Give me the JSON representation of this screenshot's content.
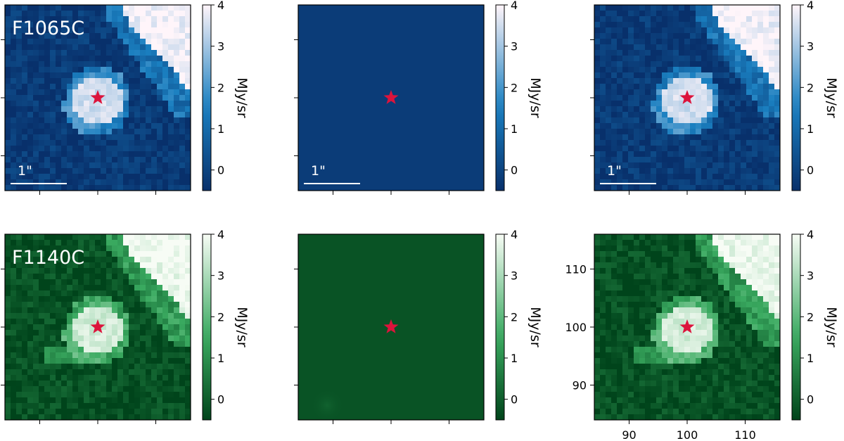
{
  "figure": {
    "colorbar_label": "MJy/sr",
    "scalebar_label": "1\""
  },
  "chart_data": [
    {
      "type": "heatmap",
      "row": 0,
      "col": 0,
      "filter_label": "F1065C",
      "colormap": "blue",
      "colors": {
        "low": "#08306b",
        "mid": "#1a7fc0",
        "high": "#fff5fa"
      },
      "clim": [
        -0.5,
        4
      ],
      "colorbar_ticks": [
        0,
        1,
        2,
        3,
        4
      ],
      "content": "source_and_extended",
      "source_marker": {
        "symbol": "star",
        "color": "#dc143c",
        "x": 100,
        "y": 100
      },
      "scalebar": true,
      "xlim": [
        84,
        116
      ],
      "ylim": [
        84,
        116
      ],
      "xticks": [
        90,
        100,
        110
      ],
      "yticks": [
        90,
        100,
        110
      ],
      "show_tick_labels": false
    },
    {
      "type": "heatmap",
      "row": 0,
      "col": 1,
      "filter_label": "",
      "colormap": "blue",
      "colors": {
        "low": "#08306b",
        "mid": "#1a7fc0",
        "high": "#fff5fa"
      },
      "clim": [
        -0.5,
        4
      ],
      "colorbar_ticks": [
        0,
        1,
        2,
        3,
        4
      ],
      "content": "flat_model",
      "flat_value": -0.2,
      "source_marker": {
        "symbol": "star",
        "color": "#dc143c",
        "x": 100,
        "y": 100
      },
      "scalebar": true,
      "xlim": [
        84,
        116
      ],
      "ylim": [
        84,
        116
      ],
      "xticks": [
        90,
        100,
        110
      ],
      "yticks": [
        90,
        100,
        110
      ],
      "show_tick_labels": false
    },
    {
      "type": "heatmap",
      "row": 0,
      "col": 2,
      "filter_label": "",
      "colormap": "blue",
      "colors": {
        "low": "#08306b",
        "mid": "#1a7fc0",
        "high": "#fff5fa"
      },
      "clim": [
        -0.5,
        4
      ],
      "colorbar_ticks": [
        0,
        1,
        2,
        3,
        4
      ],
      "content": "source_and_extended",
      "source_marker": {
        "symbol": "star",
        "color": "#dc143c",
        "x": 100,
        "y": 100
      },
      "scalebar": true,
      "xlim": [
        84,
        116
      ],
      "ylim": [
        84,
        116
      ],
      "xticks": [
        90,
        100,
        110
      ],
      "yticks": [
        90,
        100,
        110
      ],
      "show_tick_labels": false
    },
    {
      "type": "heatmap",
      "row": 1,
      "col": 0,
      "filter_label": "F1140C",
      "colormap": "green",
      "colors": {
        "low": "#00441b",
        "mid": "#3aaa60",
        "high": "#f7fcf5"
      },
      "clim": [
        -0.5,
        4
      ],
      "colorbar_ticks": [
        0,
        1,
        2,
        3,
        4
      ],
      "content": "source_and_extended",
      "source_marker": {
        "symbol": "star",
        "color": "#dc143c",
        "x": 100,
        "y": 100
      },
      "scalebar": false,
      "xlim": [
        84,
        116
      ],
      "ylim": [
        84,
        116
      ],
      "xticks": [
        90,
        100,
        110
      ],
      "yticks": [
        90,
        100,
        110
      ],
      "show_tick_labels": false
    },
    {
      "type": "heatmap",
      "row": 1,
      "col": 1,
      "filter_label": "",
      "colormap": "green",
      "colors": {
        "low": "#00441b",
        "mid": "#3aaa60",
        "high": "#f7fcf5"
      },
      "clim": [
        -0.5,
        4
      ],
      "colorbar_ticks": [
        0,
        1,
        2,
        3,
        4
      ],
      "content": "flat_model_with_blob",
      "flat_value": -0.2,
      "blob": {
        "x": 89,
        "y": 86.5,
        "peak": 0.3
      },
      "source_marker": {
        "symbol": "star",
        "color": "#dc143c",
        "x": 100,
        "y": 100
      },
      "scalebar": false,
      "xlim": [
        84,
        116
      ],
      "ylim": [
        84,
        116
      ],
      "xticks": [
        90,
        100,
        110
      ],
      "yticks": [
        90,
        100,
        110
      ],
      "show_tick_labels": false
    },
    {
      "type": "heatmap",
      "row": 1,
      "col": 2,
      "filter_label": "",
      "colormap": "green",
      "colors": {
        "low": "#00441b",
        "mid": "#3aaa60",
        "high": "#f7fcf5"
      },
      "clim": [
        -0.5,
        4
      ],
      "colorbar_ticks": [
        0,
        1,
        2,
        3,
        4
      ],
      "content": "source_and_extended",
      "source_marker": {
        "symbol": "star",
        "color": "#dc143c",
        "x": 100,
        "y": 100
      },
      "scalebar": false,
      "xlim": [
        84,
        116
      ],
      "ylim": [
        84,
        116
      ],
      "xticks": [
        90,
        100,
        110
      ],
      "yticks": [
        90,
        100,
        110
      ],
      "show_tick_labels": true
    }
  ]
}
